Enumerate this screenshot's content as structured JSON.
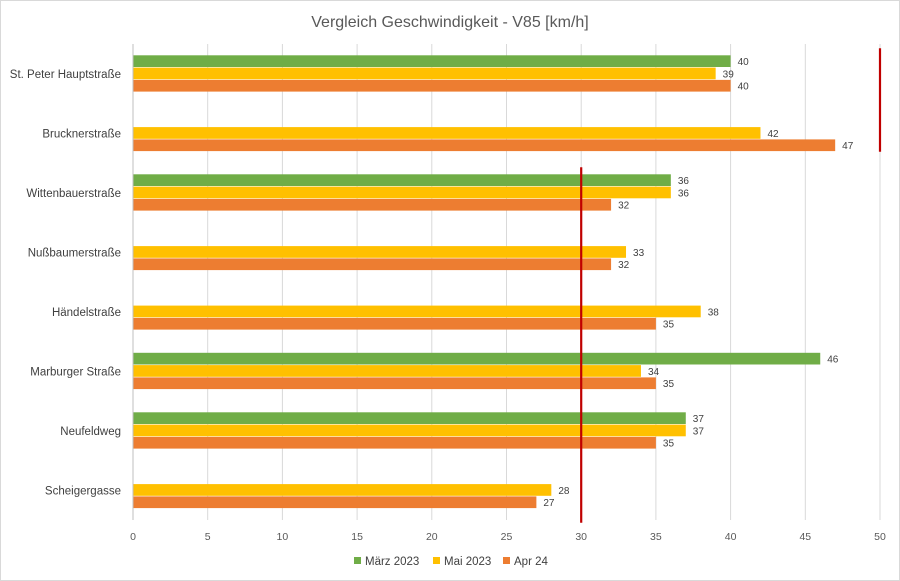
{
  "chart_data": {
    "type": "bar",
    "orientation": "horizontal",
    "title": "Vergleich Geschwindigkeit - V85 [km/h]",
    "xlabel": "",
    "ylabel": "",
    "xlim": [
      0,
      50
    ],
    "x_ticks": [
      0,
      5,
      10,
      15,
      20,
      25,
      30,
      35,
      40,
      45,
      50
    ],
    "grid": true,
    "legend_position": "bottom",
    "categories": [
      "St. Peter Hauptstraße",
      "Brucknerstraße",
      "Wittenbauerstraße",
      "Nußbaumerstraße",
      "Händelstraße",
      "Marburger Straße",
      "Neufeldweg",
      "Scheigergasse"
    ],
    "series": [
      {
        "name": "März 2023",
        "color": "#70ad47",
        "values": [
          40,
          null,
          36,
          null,
          null,
          46,
          37,
          null
        ]
      },
      {
        "name": "Mai 2023",
        "color": "#ffc000",
        "values": [
          39,
          42,
          36,
          33,
          38,
          34,
          37,
          28
        ]
      },
      {
        "name": "Apr 24",
        "color": "#ed7d31",
        "values": [
          40,
          47,
          32,
          32,
          35,
          35,
          35,
          27
        ]
      }
    ],
    "reference_lines": [
      {
        "x": 30,
        "color": "#c00000",
        "from_category": "Wittenbauerstraße",
        "to_category": "Scheigergasse"
      },
      {
        "x": 50,
        "color": "#c00000",
        "from_category": "St. Peter Hauptstraße",
        "to_category": "Brucknerstraße"
      }
    ]
  }
}
